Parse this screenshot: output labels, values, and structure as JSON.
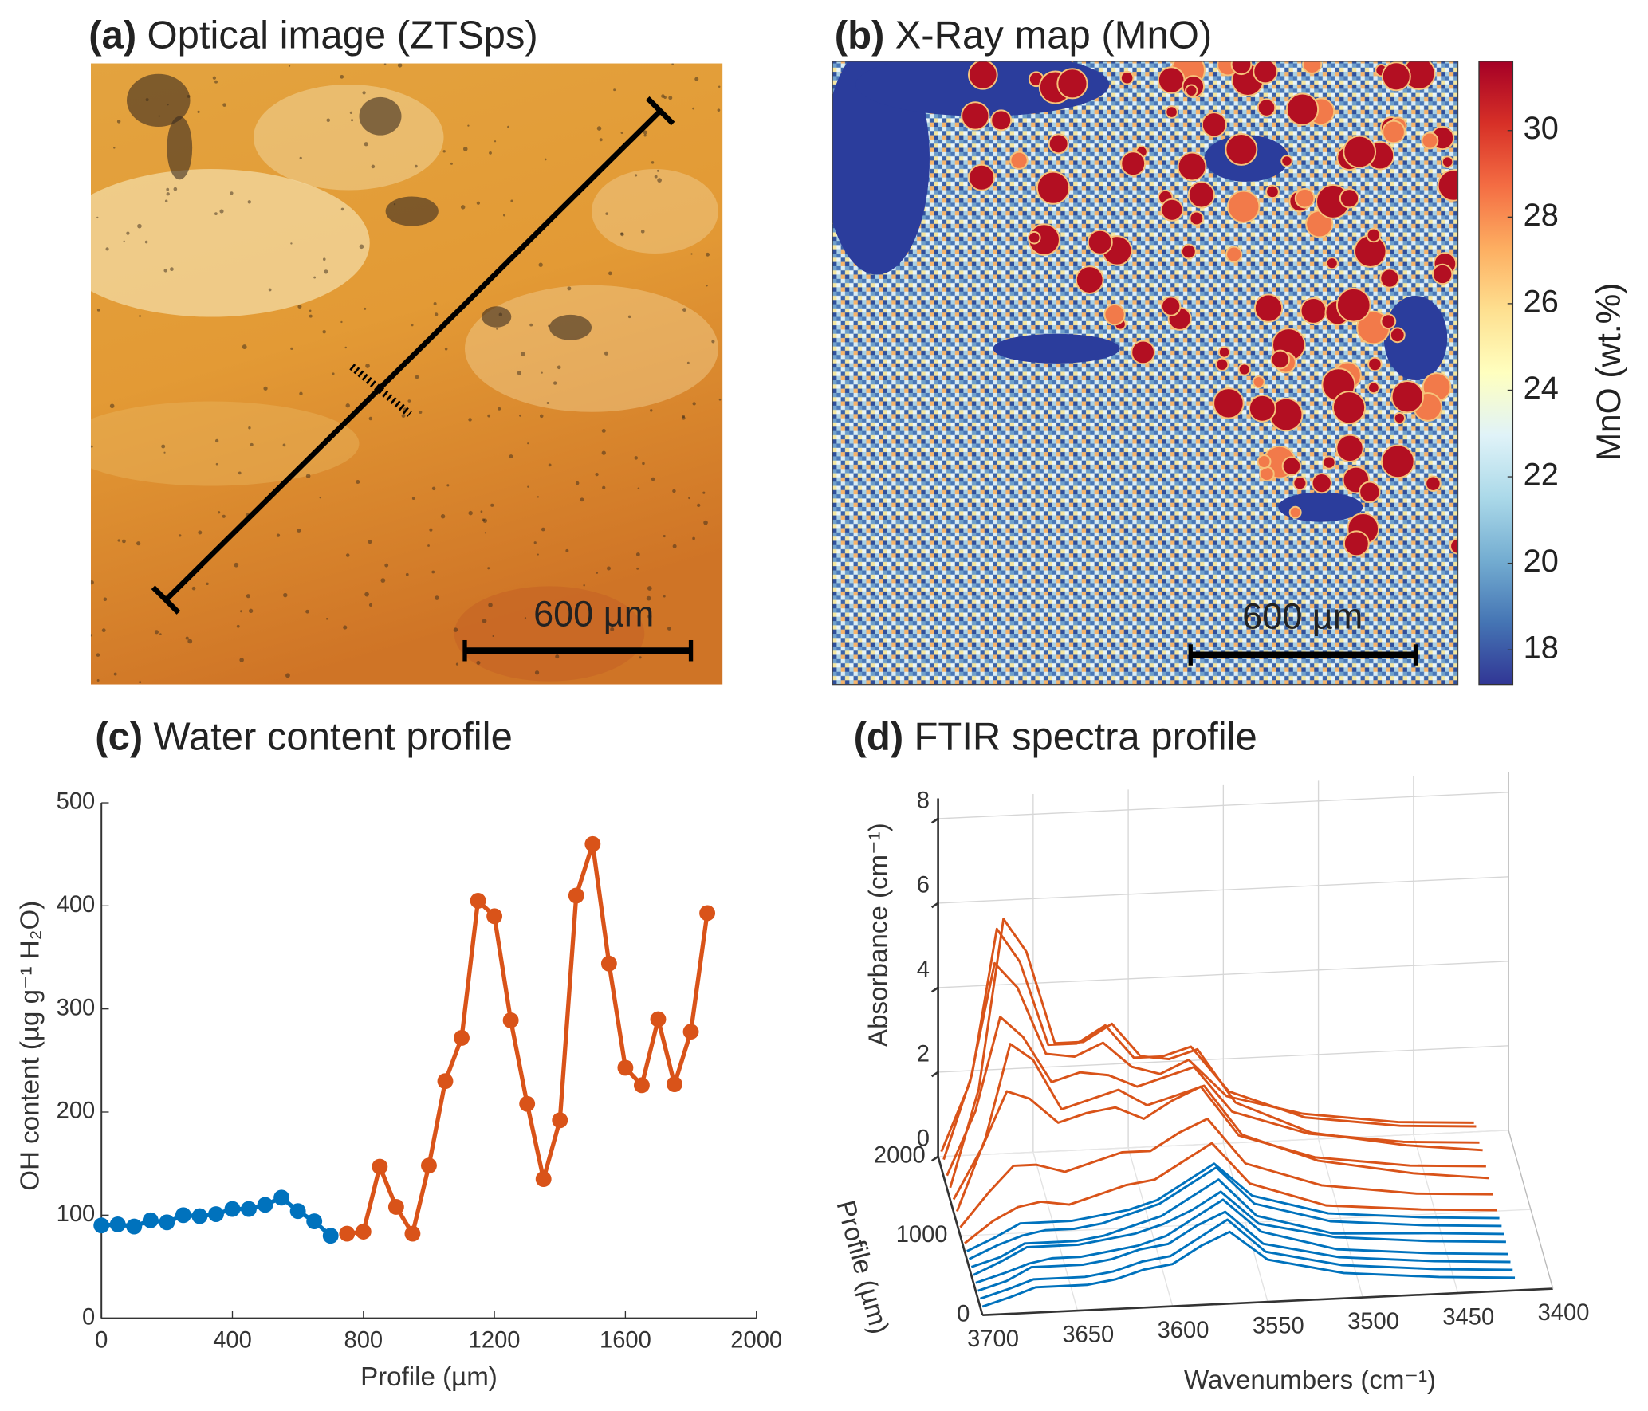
{
  "chart_data": [
    {
      "type": "image",
      "label": "(a)",
      "title": "Optical image (ZTSps)",
      "scale_bar_label": "600 µm"
    },
    {
      "type": "map",
      "label": "(b)",
      "title": "X-Ray map (MnO)",
      "scale_bar_label": "600 µm",
      "colorbar_label": "MnO (wt.%)",
      "clim": [
        17.2,
        31.6
      ],
      "cticks": [
        18,
        20,
        22,
        24,
        26,
        28,
        30
      ]
    },
    {
      "type": "line",
      "label": "(c)",
      "title": "Water content profile",
      "xlabel": "Profile (µm)",
      "ylabel": "OH content (µg g⁻¹ H₂O)",
      "xlim": [
        0,
        2000
      ],
      "ylim": [
        0,
        500
      ],
      "xticks": [
        0,
        400,
        800,
        1200,
        1600,
        2000
      ],
      "yticks": [
        0,
        100,
        200,
        300,
        400,
        500
      ],
      "series": [
        {
          "color": "#0072bd",
          "x": [
            0,
            50,
            100,
            150,
            200,
            250,
            300,
            350,
            400,
            450,
            500,
            550,
            600,
            650,
            700
          ],
          "values": [
            90,
            91,
            89,
            95,
            93,
            100,
            99,
            101,
            106,
            106,
            110,
            117,
            104,
            94,
            80
          ]
        },
        {
          "color": "#d95319",
          "x": [
            750,
            800,
            850,
            900,
            950,
            1000,
            1050,
            1100,
            1150,
            1200,
            1250,
            1300,
            1350,
            1400,
            1450,
            1500,
            1550,
            1600,
            1650,
            1700,
            1750,
            1800,
            1850
          ],
          "values": [
            82,
            84,
            147,
            108,
            82,
            148,
            230,
            272,
            405,
            390,
            289,
            208,
            135,
            192,
            410,
            460,
            344,
            243,
            226,
            290,
            227,
            278,
            393
          ]
        }
      ]
    },
    {
      "type": "waterfall",
      "label": "(d)",
      "title": "FTIR spectra profile",
      "xlabel": "Wavenumbers (cm⁻¹)",
      "ylabel": "Profile (µm)",
      "zlabel": "Absorbance (cm⁻¹)",
      "xlim": [
        3700,
        3400
      ],
      "xticks": [
        3700,
        3650,
        3600,
        3550,
        3500,
        3450,
        3400
      ],
      "ylim": [
        0,
        2000
      ],
      "yticks": [
        0,
        1000,
        2000
      ],
      "zlim": [
        0,
        8
      ],
      "zticks": [
        0,
        2,
        4,
        6,
        8
      ],
      "x": [
        3700,
        3685,
        3672,
        3660,
        3645,
        3630,
        3615,
        3600,
        3585,
        3570,
        3550,
        3510,
        3460,
        3420
      ],
      "series": [
        {
          "color": "#d95319",
          "profile": 1850,
          "values": [
            0.4,
            2.0,
            4.8,
            4.2,
            2.6,
            2.5,
            2.8,
            2.2,
            2.0,
            2.3,
            1.4,
            0.9,
            0.6,
            0.5
          ]
        },
        {
          "color": "#d95319",
          "profile": 1750,
          "values": [
            0.4,
            2.4,
            5.8,
            5.0,
            3.0,
            3.0,
            3.4,
            2.6,
            2.6,
            2.8,
            1.7,
            1.0,
            0.7,
            0.6
          ]
        },
        {
          "color": "#d95319",
          "profile": 1600,
          "values": [
            0.3,
            1.8,
            4.0,
            3.5,
            2.4,
            2.6,
            2.5,
            2.2,
            2.4,
            2.6,
            1.5,
            0.9,
            0.6,
            0.5
          ]
        },
        {
          "color": "#d95319",
          "profile": 1450,
          "values": [
            0.3,
            2.6,
            6.6,
            5.8,
            3.6,
            3.6,
            4.0,
            3.2,
            3.1,
            3.3,
            2.0,
            1.2,
            0.8,
            0.6
          ]
        },
        {
          "color": "#d95319",
          "profile": 1300,
          "values": [
            0.3,
            1.5,
            2.8,
            2.6,
            2.0,
            2.2,
            2.3,
            2.0,
            2.4,
            2.7,
            1.5,
            0.9,
            0.6,
            0.5
          ]
        },
        {
          "color": "#d95319",
          "profile": 1150,
          "values": [
            0.3,
            2.0,
            4.2,
            3.8,
            2.6,
            2.8,
            3.0,
            2.6,
            2.8,
            3.0,
            1.8,
            1.1,
            0.7,
            0.5
          ]
        },
        {
          "color": "#d95319",
          "profile": 1000,
          "values": [
            0.2,
            1.0,
            1.6,
            1.6,
            1.4,
            1.6,
            1.8,
            1.8,
            2.2,
            2.5,
            1.4,
            0.8,
            0.5,
            0.4
          ]
        },
        {
          "color": "#d95319",
          "profile": 800,
          "values": [
            0.2,
            0.7,
            1.0,
            1.1,
            1.0,
            1.2,
            1.4,
            1.5,
            1.9,
            2.3,
            1.3,
            0.7,
            0.5,
            0.4
          ]
        },
        {
          "color": "#0072bd",
          "profile": 700,
          "values": [
            0.2,
            0.5,
            0.8,
            0.8,
            0.8,
            0.9,
            1.0,
            1.2,
            1.6,
            2.0,
            1.2,
            0.7,
            0.5,
            0.4
          ]
        },
        {
          "color": "#0072bd",
          "profile": 600,
          "values": [
            0.2,
            0.5,
            0.7,
            0.8,
            0.8,
            0.9,
            1.1,
            1.3,
            1.7,
            2.1,
            1.2,
            0.7,
            0.5,
            0.4
          ]
        },
        {
          "color": "#0072bd",
          "profile": 500,
          "values": [
            0.2,
            0.4,
            0.7,
            0.7,
            0.7,
            0.8,
            1.0,
            1.2,
            1.6,
            2.0,
            1.1,
            0.6,
            0.5,
            0.4
          ]
        },
        {
          "color": "#0072bd",
          "profile": 400,
          "values": [
            0.2,
            0.5,
            0.8,
            0.8,
            0.8,
            0.9,
            1.0,
            1.2,
            1.5,
            1.9,
            1.1,
            0.7,
            0.5,
            0.4
          ]
        },
        {
          "color": "#0072bd",
          "profile": 300,
          "values": [
            0.2,
            0.4,
            0.6,
            0.7,
            0.7,
            0.8,
            0.9,
            1.1,
            1.5,
            1.9,
            1.1,
            0.6,
            0.4,
            0.3
          ]
        },
        {
          "color": "#0072bd",
          "profile": 200,
          "values": [
            0.2,
            0.4,
            0.7,
            0.7,
            0.7,
            0.8,
            1.0,
            1.1,
            1.5,
            1.8,
            1.0,
            0.6,
            0.4,
            0.3
          ]
        },
        {
          "color": "#0072bd",
          "profile": 100,
          "values": [
            0.2,
            0.4,
            0.6,
            0.6,
            0.6,
            0.7,
            0.9,
            1.0,
            1.4,
            1.8,
            1.0,
            0.6,
            0.4,
            0.3
          ]
        },
        {
          "color": "#0072bd",
          "profile": 0,
          "values": [
            0.2,
            0.4,
            0.6,
            0.6,
            0.6,
            0.7,
            0.9,
            1.0,
            1.4,
            1.7,
            1.0,
            0.6,
            0.4,
            0.3
          ]
        }
      ]
    }
  ]
}
